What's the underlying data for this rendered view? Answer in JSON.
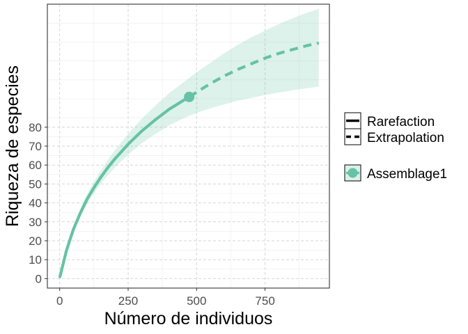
{
  "chart_data": {
    "type": "line",
    "xlabel": "Número de individuos",
    "ylabel": "Riqueza de especies",
    "xlim": [
      -45,
      985
    ],
    "ylim": [
      -5,
      145
    ],
    "x_ticks": [
      0,
      250,
      500,
      750
    ],
    "y_ticks": [
      0,
      10,
      20,
      30,
      40,
      50,
      60,
      70,
      80
    ],
    "grid": true,
    "legend_position": "right",
    "linetype_legend": [
      "Rarefaction",
      "Extrapolation"
    ],
    "series": [
      {
        "name": "Assemblage1",
        "color": "#66c2a5",
        "observed_point": {
          "x": 473,
          "y": 96
        },
        "rarefaction": {
          "x": [
            1,
            25,
            50,
            75,
            100,
            125,
            150,
            175,
            200,
            250,
            300,
            350,
            400,
            450,
            473
          ],
          "y": [
            1,
            15,
            26,
            34.5,
            42,
            48,
            53.5,
            58.5,
            63,
            71,
            78,
            84,
            89.5,
            94,
            96
          ]
        },
        "extrapolation": {
          "x": [
            473,
            500,
            550,
            600,
            650,
            700,
            750,
            800,
            850,
            900,
            946
          ],
          "y": [
            96,
            98.5,
            103,
            107,
            110.5,
            113.5,
            116.5,
            119,
            121,
            123,
            124.5
          ]
        },
        "ci_band": {
          "x": [
            1,
            25,
            50,
            75,
            100,
            125,
            150,
            175,
            200,
            250,
            300,
            350,
            400,
            450,
            473,
            500,
            550,
            600,
            650,
            700,
            750,
            800,
            850,
            900,
            946
          ],
          "lower": [
            1,
            14,
            24.5,
            32.5,
            39.5,
            45,
            50,
            54.5,
            58.5,
            65.5,
            71.5,
            76.5,
            81,
            84.5,
            86,
            87.5,
            90,
            92,
            94,
            95.5,
            97,
            98.3,
            99.5,
            100.5,
            101.5
          ],
          "upper": [
            1,
            16,
            27.5,
            36.5,
            44.5,
            51,
            57,
            62.5,
            67.5,
            76.5,
            84.5,
            91.5,
            98,
            103.5,
            106,
            109,
            114,
            119,
            123.5,
            127.5,
            131,
            134.5,
            137.5,
            140.3,
            142.5
          ]
        }
      }
    ]
  }
}
